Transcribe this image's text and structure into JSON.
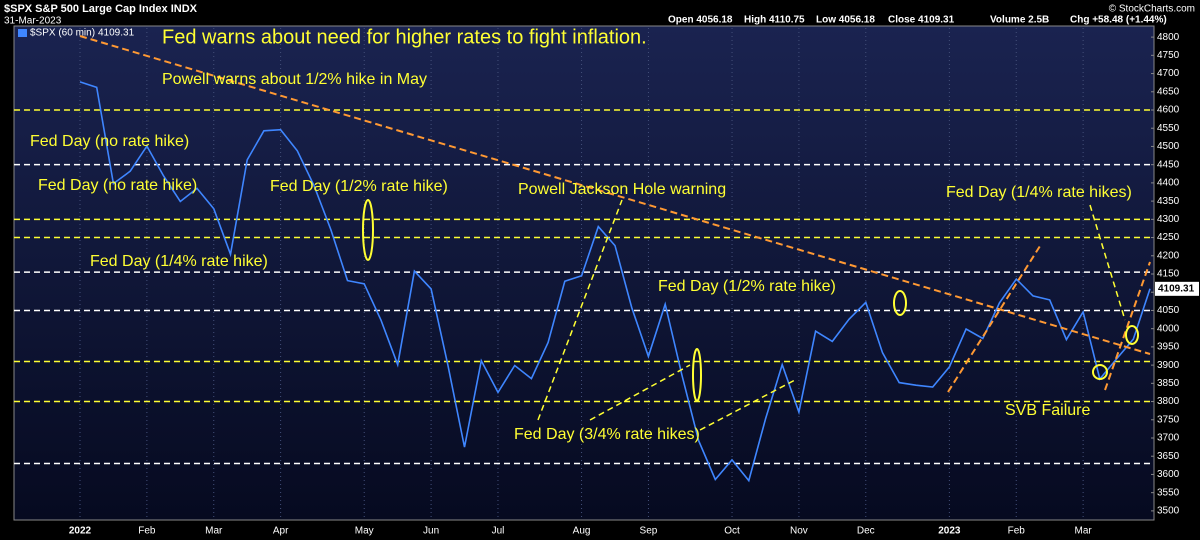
{
  "chart_data": {
    "type": "line",
    "title": "$SPX S&P 500 Large Cap Index INDX",
    "date": "31-Mar-2023",
    "quote": [
      "Open 4056.18",
      "High 4110.75",
      "Low 4056.18",
      "Close 4109.31",
      "Volume 2.5B",
      "Chg +58.48 (+1.44%)"
    ],
    "credit": "© StockCharts.com",
    "categories": [
      "2022",
      null,
      null,
      null,
      "Feb",
      null,
      null,
      null,
      "Mar",
      null,
      null,
      null,
      "Apr",
      null,
      null,
      null,
      null,
      "May",
      null,
      null,
      null,
      "Jun",
      null,
      null,
      null,
      "Jul",
      null,
      null,
      null,
      null,
      "Aug",
      null,
      null,
      null,
      "Sep",
      null,
      null,
      null,
      null,
      "Oct",
      null,
      null,
      null,
      "Nov",
      null,
      null,
      null,
      "Dec",
      null,
      null,
      null,
      null,
      "2023",
      null,
      null,
      null,
      "Feb",
      null,
      null,
      null,
      "Mar",
      null,
      null,
      null,
      null
    ],
    "series": [
      {
        "name": "$SPX (60 min)",
        "color": "#3f86ff",
        "values": [
          4677,
          4662,
          4398,
          4432,
          4501,
          4419,
          4349,
          4385,
          4329,
          4204,
          4463,
          4543,
          4546,
          4488,
          4392,
          4272,
          4132,
          4123,
          4024,
          3901,
          4158,
          4109,
          3901,
          3675,
          3912,
          3825,
          3899,
          3863,
          3962,
          4130,
          4145,
          4280,
          4228,
          4058,
          3924,
          4067,
          3873,
          3693,
          3586,
          3640,
          3583,
          3752,
          3901,
          3771,
          3993,
          3965,
          4026,
          4072,
          3934,
          3852,
          3845,
          3840,
          3895,
          3999,
          3973,
          4071,
          4136,
          4090,
          4079,
          3970,
          4046,
          3862,
          3917,
          3971,
          4109.31
        ]
      }
    ],
    "ylim": [
      3475,
      4825
    ],
    "yticks": [
      3500,
      3550,
      3600,
      3650,
      3700,
      3750,
      3800,
      3850,
      3900,
      3950,
      4000,
      4050,
      4100,
      4150,
      4200,
      4250,
      4300,
      4350,
      4400,
      4450,
      4500,
      4550,
      4600,
      4650,
      4700,
      4750,
      4800
    ],
    "grid": true,
    "reference_lines": [
      {
        "value": 4600,
        "color": "#ffff33"
      },
      {
        "value": 4450,
        "color": "#ffffff"
      },
      {
        "value": 4300,
        "color": "#ffff33"
      },
      {
        "value": 4250,
        "color": "#ffff33"
      },
      {
        "value": 4155,
        "color": "#ffffff"
      },
      {
        "value": 4050,
        "color": "#ffffff"
      },
      {
        "value": 3910,
        "color": "#ffff33"
      },
      {
        "value": 3800,
        "color": "#ffff33"
      },
      {
        "value": 3630,
        "color": "#ffffff"
      }
    ],
    "annotations": [
      "Fed warns about need for higher rates to fight inflation.",
      "Powell warns about 1/2% hike in May",
      "Fed Day (no rate hike)",
      "Fed Day (no rate hike)",
      "Fed Day (1/2% rate hike)",
      "Powell Jackson Hole warning",
      "Fed Day (1/4% rate hikes)",
      "Fed Day (1/4% rate hike)",
      "Fed Day (1/2% rate hike)",
      "SVB Failure",
      "Fed Day (3/4% rate hikes)"
    ]
  }
}
